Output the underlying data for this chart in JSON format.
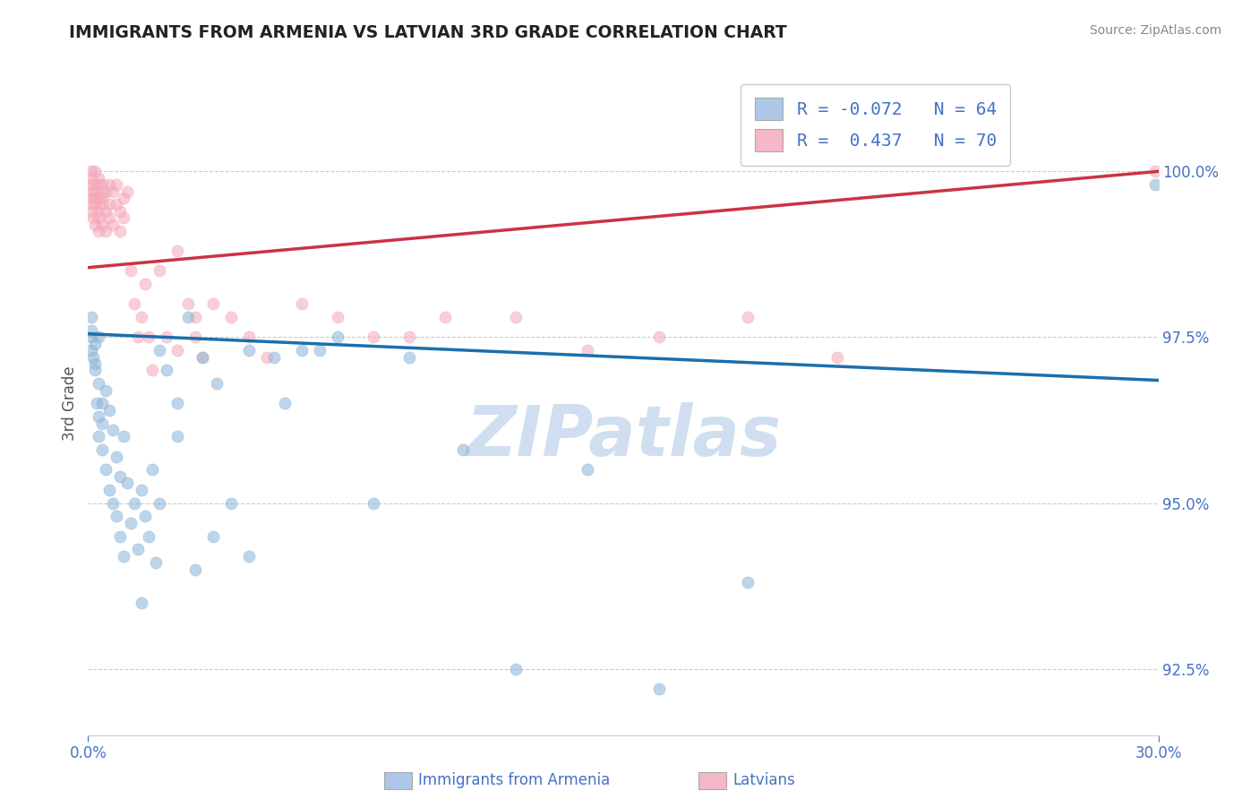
{
  "title": "IMMIGRANTS FROM ARMENIA VS LATVIAN 3RD GRADE CORRELATION CHART",
  "source": "Source: ZipAtlas.com",
  "ylabel": "3rd Grade",
  "xlim": [
    0.0,
    0.3
  ],
  "ylim": [
    91.5,
    101.5
  ],
  "x_ticks": [
    0.0,
    0.3
  ],
  "x_tick_labels": [
    "0.0%",
    "30.0%"
  ],
  "y_ticks": [
    92.5,
    95.0,
    97.5,
    100.0
  ],
  "y_tick_labels": [
    "92.5%",
    "95.0%",
    "97.5%",
    "100.0%"
  ],
  "watermark": "ZIPatlas",
  "blue_scatter_x": [
    0.0008,
    0.001,
    0.001,
    0.001,
    0.0015,
    0.002,
    0.002,
    0.002,
    0.0025,
    0.003,
    0.003,
    0.003,
    0.003,
    0.004,
    0.004,
    0.004,
    0.005,
    0.005,
    0.006,
    0.006,
    0.007,
    0.007,
    0.008,
    0.008,
    0.009,
    0.009,
    0.01,
    0.01,
    0.011,
    0.012,
    0.013,
    0.014,
    0.015,
    0.016,
    0.017,
    0.018,
    0.019,
    0.02,
    0.022,
    0.025,
    0.028,
    0.032,
    0.036,
    0.04,
    0.045,
    0.052,
    0.06,
    0.07,
    0.08,
    0.09,
    0.105,
    0.12,
    0.14,
    0.16,
    0.185,
    0.015,
    0.02,
    0.025,
    0.03,
    0.035,
    0.045,
    0.055,
    0.065,
    0.299
  ],
  "blue_scatter_y": [
    97.5,
    97.6,
    97.3,
    97.8,
    97.2,
    97.4,
    97.1,
    97.0,
    96.5,
    96.3,
    97.5,
    96.8,
    96.0,
    96.2,
    95.8,
    96.5,
    95.5,
    96.7,
    95.2,
    96.4,
    95.0,
    96.1,
    94.8,
    95.7,
    94.5,
    95.4,
    94.2,
    96.0,
    95.3,
    94.7,
    95.0,
    94.3,
    95.2,
    94.8,
    94.5,
    95.5,
    94.1,
    97.3,
    97.0,
    96.5,
    97.8,
    97.2,
    96.8,
    95.0,
    94.2,
    97.2,
    97.3,
    97.5,
    95.0,
    97.2,
    95.8,
    92.5,
    95.5,
    92.2,
    93.8,
    93.5,
    95.0,
    96.0,
    94.0,
    94.5,
    97.3,
    96.5,
    97.3,
    99.8
  ],
  "pink_scatter_x": [
    0.0005,
    0.0008,
    0.001,
    0.001,
    0.001,
    0.001,
    0.001,
    0.0015,
    0.002,
    0.002,
    0.002,
    0.002,
    0.002,
    0.002,
    0.003,
    0.003,
    0.003,
    0.003,
    0.003,
    0.003,
    0.004,
    0.004,
    0.004,
    0.004,
    0.004,
    0.005,
    0.005,
    0.005,
    0.006,
    0.006,
    0.006,
    0.007,
    0.007,
    0.008,
    0.008,
    0.009,
    0.009,
    0.01,
    0.01,
    0.011,
    0.012,
    0.013,
    0.014,
    0.015,
    0.016,
    0.018,
    0.02,
    0.022,
    0.025,
    0.025,
    0.028,
    0.03,
    0.03,
    0.032,
    0.035,
    0.04,
    0.045,
    0.05,
    0.06,
    0.07,
    0.08,
    0.09,
    0.1,
    0.12,
    0.14,
    0.16,
    0.185,
    0.21,
    0.017,
    0.299
  ],
  "pink_scatter_y": [
    99.8,
    99.5,
    99.7,
    99.6,
    99.4,
    99.9,
    100.0,
    99.3,
    99.8,
    99.5,
    99.6,
    99.2,
    99.7,
    100.0,
    99.8,
    99.4,
    99.6,
    99.1,
    99.9,
    99.3,
    99.7,
    99.5,
    99.8,
    99.2,
    99.6,
    99.4,
    99.7,
    99.1,
    99.8,
    99.3,
    99.5,
    99.7,
    99.2,
    99.5,
    99.8,
    99.4,
    99.1,
    99.6,
    99.3,
    99.7,
    98.5,
    98.0,
    97.5,
    97.8,
    98.3,
    97.0,
    98.5,
    97.5,
    98.8,
    97.3,
    98.0,
    97.5,
    97.8,
    97.2,
    98.0,
    97.8,
    97.5,
    97.2,
    98.0,
    97.8,
    97.5,
    97.5,
    97.8,
    97.8,
    97.3,
    97.5,
    97.8,
    97.2,
    97.5,
    100.0
  ],
  "blue_line_x": [
    0.0,
    0.3
  ],
  "blue_line_y": [
    97.55,
    96.85
  ],
  "pink_line_x": [
    0.0,
    0.3
  ],
  "pink_line_y": [
    98.55,
    100.0
  ],
  "scatter_color_blue": "#8ab4d8",
  "scatter_color_pink": "#f4a8b8",
  "line_color_blue": "#1a6fad",
  "line_color_pink": "#cc3344",
  "legend_box_blue": "#aec6e8",
  "legend_box_pink": "#f4b8c8",
  "legend_text_color": "#4472c4",
  "axis_tick_color": "#4472c4",
  "grid_color": "#cccccc",
  "watermark_color": "#d0dff0",
  "title_color": "#222222",
  "source_color": "#888888",
  "legend_label_blue": "R = -0.072   N = 64",
  "legend_label_pink": "R =  0.437   N = 70",
  "bottom_legend_blue": "Immigrants from Armenia",
  "bottom_legend_pink": "Latvians"
}
